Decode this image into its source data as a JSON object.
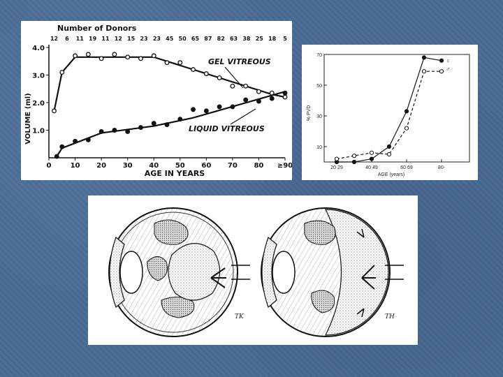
{
  "slide": {
    "background_color": "#4a6b96"
  },
  "chart_data": [
    {
      "type": "line",
      "donors_header": "Number of Donors",
      "donor_counts": [
        "12",
        "6",
        "11",
        "19",
        "11",
        "12",
        "15",
        "23",
        "23",
        "45",
        "50",
        "65",
        "87",
        "82",
        "63",
        "38",
        "25",
        "18",
        "5"
      ],
      "xlabel": "AGE IN YEARS",
      "ylabel": "VOLUME (ml)",
      "xlim": [
        0,
        90
      ],
      "ylim": [
        0,
        4.0
      ],
      "x_ticks": [
        "0",
        "10",
        "20",
        "30",
        "40",
        "50",
        "60",
        "70",
        "80",
        "≥90"
      ],
      "y_ticks": [
        "1.0",
        "2.0",
        "3.0",
        "4.0"
      ],
      "series": [
        {
          "name": "GEL VITREOUS",
          "marker": "open",
          "points": [
            [
              2,
              1.7
            ],
            [
              5,
              3.1
            ],
            [
              10,
              3.7
            ],
            [
              15,
              3.75
            ],
            [
              20,
              3.6
            ],
            [
              25,
              3.75
            ],
            [
              30,
              3.65
            ],
            [
              35,
              3.6
            ],
            [
              40,
              3.7
            ],
            [
              45,
              3.45
            ],
            [
              50,
              3.45
            ],
            [
              55,
              3.2
            ],
            [
              60,
              3.05
            ],
            [
              65,
              2.9
            ],
            [
              70,
              2.6
            ],
            [
              75,
              2.6
            ],
            [
              80,
              2.4
            ],
            [
              85,
              2.35
            ],
            [
              90,
              2.2
            ]
          ],
          "line": [
            [
              2,
              1.7
            ],
            [
              5,
              3.1
            ],
            [
              10,
              3.65
            ],
            [
              40,
              3.65
            ],
            [
              85,
              2.3
            ],
            [
              90,
              2.2
            ]
          ]
        },
        {
          "name": "LIQUID VITREOUS",
          "marker": "filled",
          "points": [
            [
              3,
              0.05
            ],
            [
              5,
              0.4
            ],
            [
              10,
              0.6
            ],
            [
              15,
              0.65
            ],
            [
              20,
              0.95
            ],
            [
              25,
              1.0
            ],
            [
              30,
              0.95
            ],
            [
              35,
              1.1
            ],
            [
              40,
              1.25
            ],
            [
              45,
              1.2
            ],
            [
              50,
              1.4
            ],
            [
              55,
              1.75
            ],
            [
              60,
              1.7
            ],
            [
              65,
              1.85
            ],
            [
              70,
              1.85
            ],
            [
              75,
              2.1
            ],
            [
              80,
              2.05
            ],
            [
              85,
              2.15
            ],
            [
              90,
              2.35
            ]
          ],
          "line": [
            [
              3,
              0.05
            ],
            [
              5,
              0.35
            ],
            [
              20,
              0.9
            ],
            [
              40,
              1.15
            ],
            [
              55,
              1.45
            ],
            [
              90,
              2.4
            ]
          ]
        }
      ]
    },
    {
      "type": "line",
      "xlabel": "AGE (years)",
      "ylabel": "% PVD",
      "ylim": [
        0,
        70
      ],
      "x_ticks": [
        "20 29",
        "40 49",
        "60 69",
        "80-"
      ],
      "y_ticks": [
        "10",
        "30",
        "50",
        "70"
      ],
      "legend_symbols": [
        "♀",
        "♂"
      ],
      "series": [
        {
          "marker": "filled",
          "x": [
            20,
            30,
            40,
            50,
            60,
            70,
            80
          ],
          "y": [
            0,
            0,
            2,
            10,
            33,
            68,
            66
          ]
        },
        {
          "marker": "open",
          "x": [
            20,
            30,
            40,
            50,
            60,
            70,
            80
          ],
          "y": [
            2,
            4,
            6,
            5,
            22,
            59,
            59
          ]
        }
      ]
    }
  ],
  "eye_diagrams": {
    "initials": [
      "TK",
      "TH"
    ]
  }
}
